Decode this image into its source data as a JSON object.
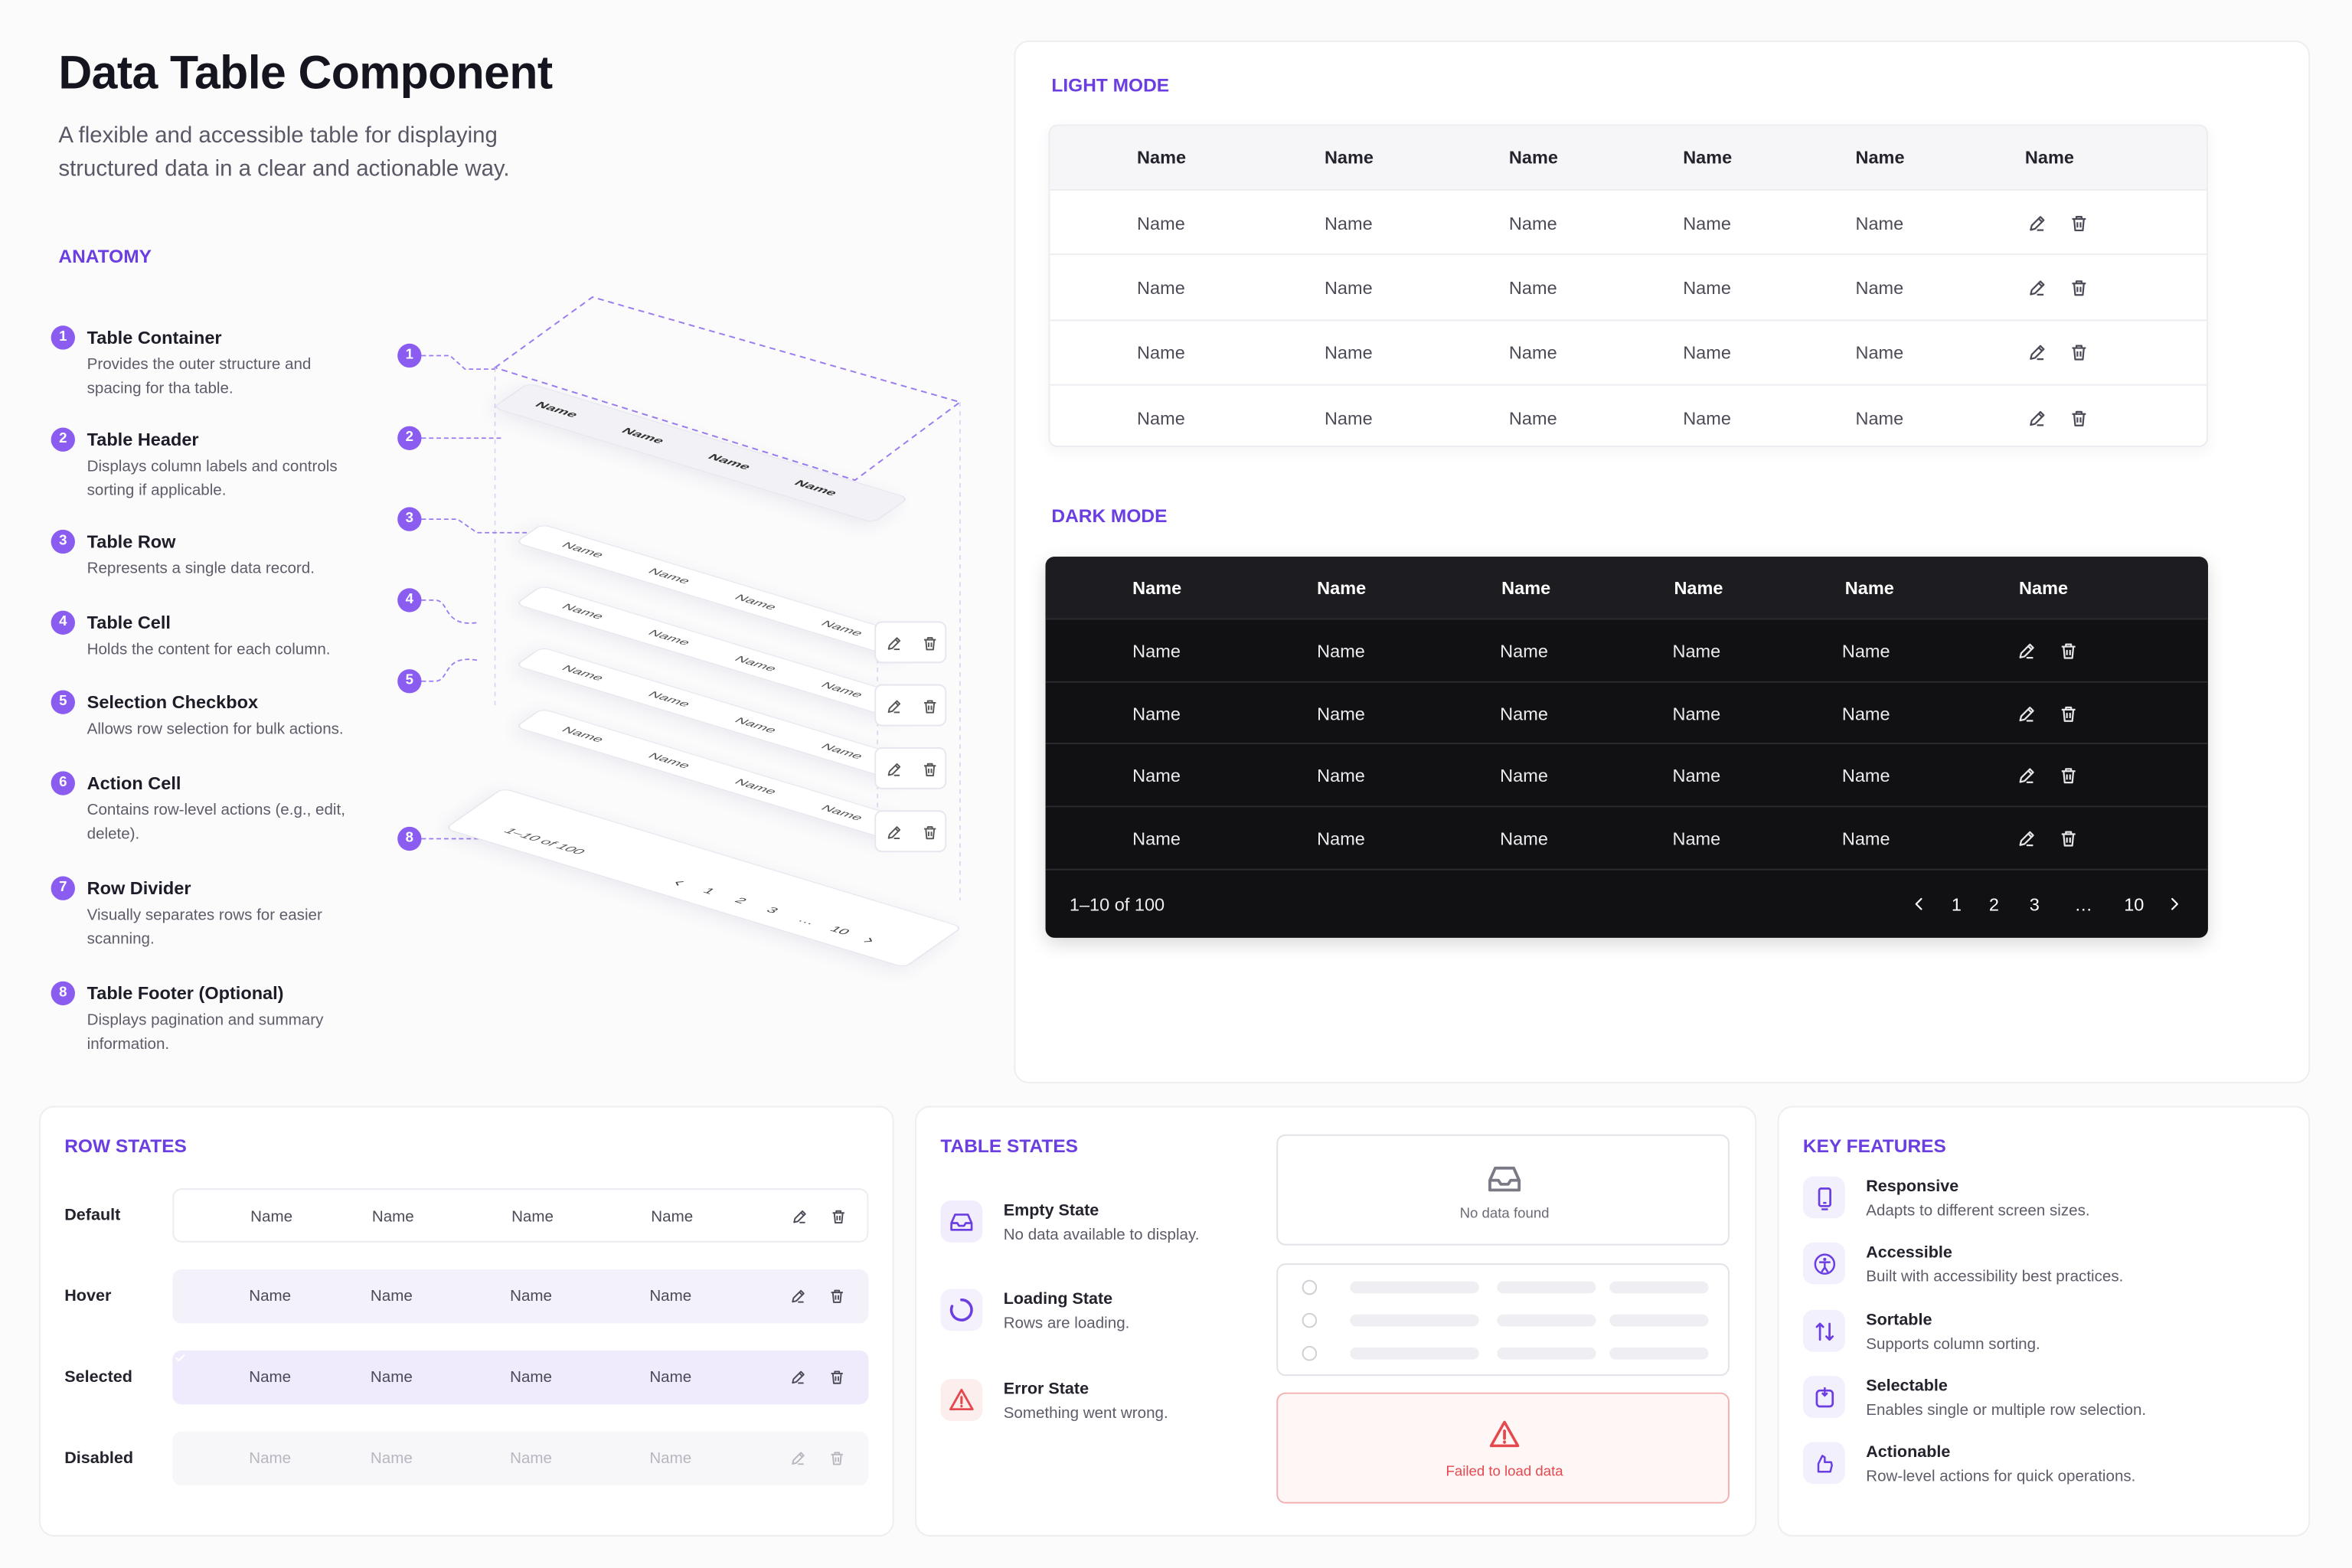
{
  "header": {
    "title": "Data Table Component",
    "subtitle": "A flexible and accessible table for displaying structured data in a clear and actionable way."
  },
  "anatomy": {
    "heading": "ANATOMY",
    "items": [
      {
        "number": "1",
        "title": "Table Container",
        "description": "Provides the outer structure and spacing for tha table."
      },
      {
        "number": "2",
        "title": "Table Header",
        "description": "Displays column labels and controls sorting if applicable."
      },
      {
        "number": "3",
        "title": "Table Row",
        "description": "Represents a single data record."
      },
      {
        "number": "4",
        "title": "Table Cell",
        "description": "Holds the content for each column."
      },
      {
        "number": "5",
        "title": "Selection Checkbox",
        "description": "Allows row selection for bulk actions."
      },
      {
        "number": "6",
        "title": "Action Cell",
        "description": "Contains row-level actions (e.g., edit, delete)."
      },
      {
        "number": "7",
        "title": "Row Divider",
        "description": "Visually separates rows for easier scanning."
      },
      {
        "number": "8",
        "title": "Table Footer (Optional)",
        "description": "Displays pagination and summary information."
      }
    ],
    "diagram": {
      "callouts": [
        "1",
        "2",
        "3",
        "4",
        "5",
        "8"
      ],
      "header": [
        "Name",
        "Name",
        "Name",
        "Name"
      ],
      "rows": [
        [
          "Name",
          "Name",
          "Name",
          "Name"
        ],
        [
          "Name",
          "Name",
          "Name",
          "Name"
        ],
        [
          "Name",
          "Name",
          "Name",
          "Name"
        ],
        [
          "Name",
          "Name",
          "Name",
          "Name"
        ]
      ],
      "footer": {
        "summary": "1–10 of 100",
        "pages": [
          "1",
          "2",
          "3",
          "…",
          "10"
        ]
      }
    }
  },
  "light_mode": {
    "heading": "LIGHT MODE",
    "columns": [
      "Name",
      "Name",
      "Name",
      "Name",
      "Name",
      "Name"
    ],
    "rows": [
      [
        "Name",
        "Name",
        "Name",
        "Name",
        "Name"
      ],
      [
        "Name",
        "Name",
        "Name",
        "Name",
        "Name"
      ],
      [
        "Name",
        "Name",
        "Name",
        "Name",
        "Name"
      ],
      [
        "Name",
        "Name",
        "Name",
        "Name",
        "Name"
      ]
    ]
  },
  "dark_mode": {
    "heading": "DARK MODE",
    "columns": [
      "Name",
      "Name",
      "Name",
      "Name",
      "Name",
      "Name"
    ],
    "rows": [
      [
        "Name",
        "Name",
        "Name",
        "Name",
        "Name"
      ],
      [
        "Name",
        "Name",
        "Name",
        "Name",
        "Name"
      ],
      [
        "Name",
        "Name",
        "Name",
        "Name",
        "Name"
      ],
      [
        "Name",
        "Name",
        "Name",
        "Name",
        "Name"
      ]
    ],
    "footer": {
      "summary": "1–10 of 100",
      "pages": [
        "1",
        "2",
        "3",
        "…",
        "10"
      ]
    }
  },
  "row_states": {
    "heading": "ROW STATES",
    "rows": [
      {
        "label": "Default",
        "cells": [
          "Name",
          "Name",
          "Name",
          "Name"
        ]
      },
      {
        "label": "Hover",
        "cells": [
          "Name",
          "Name",
          "Name",
          "Name"
        ]
      },
      {
        "label": "Selected",
        "cells": [
          "Name",
          "Name",
          "Name",
          "Name"
        ]
      },
      {
        "label": "Disabled",
        "cells": [
          "Name",
          "Name",
          "Name",
          "Name"
        ]
      }
    ]
  },
  "table_states": {
    "heading": "TABLE STATES",
    "items": [
      {
        "title": "Empty State",
        "description": "No data available to display."
      },
      {
        "title": "Loading State",
        "description": "Rows are loading."
      },
      {
        "title": "Error State",
        "description": "Something went wrong."
      }
    ],
    "empty_message": "No data found",
    "error_message": "Failed to load data"
  },
  "key_features": {
    "heading": "KEY FEATURES",
    "items": [
      {
        "title": "Responsive",
        "description": "Adapts to different screen sizes."
      },
      {
        "title": "Accessible",
        "description": "Built with accessibility best practices."
      },
      {
        "title": "Sortable",
        "description": "Supports column sorting."
      },
      {
        "title": "Selectable",
        "description": "Enables single or multiple row selection."
      },
      {
        "title": "Actionable",
        "description": "Row-level actions for quick operations."
      }
    ]
  }
}
